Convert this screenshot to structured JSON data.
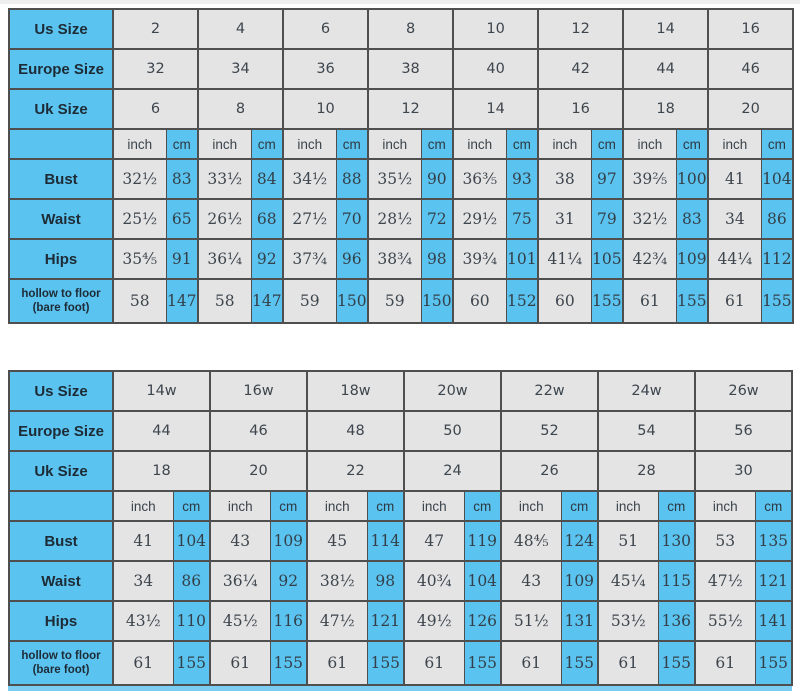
{
  "colors": {
    "cell_blue": "#5bc3ef",
    "cell_grey": "#e4e4e4",
    "border": "#4f4f4f",
    "label_text": "#1d2b36",
    "value_text": "#3d454d"
  },
  "chart_data": [
    {
      "type": "table",
      "columns": 8,
      "units": {
        "inch": "inch",
        "cm": "cm"
      },
      "size_rows": [
        {
          "label": "Us Size",
          "values": [
            "2",
            "4",
            "6",
            "8",
            "10",
            "12",
            "14",
            "16"
          ]
        },
        {
          "label": "Europe Size",
          "values": [
            "32",
            "34",
            "36",
            "38",
            "40",
            "42",
            "44",
            "46"
          ]
        },
        {
          "label": "Uk Size",
          "values": [
            "6",
            "8",
            "10",
            "12",
            "14",
            "16",
            "18",
            "20"
          ]
        }
      ],
      "measure_rows": [
        {
          "label": "Bust",
          "small": false,
          "pairs": [
            [
              "32½",
              "83"
            ],
            [
              "33½",
              "84"
            ],
            [
              "34½",
              "88"
            ],
            [
              "35½",
              "90"
            ],
            [
              "36⅗",
              "93"
            ],
            [
              "38",
              "97"
            ],
            [
              "39⅖",
              "100"
            ],
            [
              "41",
              "104"
            ]
          ]
        },
        {
          "label": "Waist",
          "small": false,
          "pairs": [
            [
              "25½",
              "65"
            ],
            [
              "26½",
              "68"
            ],
            [
              "27½",
              "70"
            ],
            [
              "28½",
              "72"
            ],
            [
              "29½",
              "75"
            ],
            [
              "31",
              "79"
            ],
            [
              "32½",
              "83"
            ],
            [
              "34",
              "86"
            ]
          ]
        },
        {
          "label": "Hips",
          "small": false,
          "pairs": [
            [
              "35⅘",
              "91"
            ],
            [
              "36¼",
              "92"
            ],
            [
              "37¾",
              "96"
            ],
            [
              "38¾",
              "98"
            ],
            [
              "39¾",
              "101"
            ],
            [
              "41¼",
              "105"
            ],
            [
              "42¾",
              "109"
            ],
            [
              "44¼",
              "112"
            ]
          ]
        },
        {
          "label": "hollow to floor\n(bare foot)",
          "small": true,
          "pairs": [
            [
              "58",
              "147"
            ],
            [
              "58",
              "147"
            ],
            [
              "59",
              "150"
            ],
            [
              "59",
              "150"
            ],
            [
              "60",
              "152"
            ],
            [
              "60",
              "155"
            ],
            [
              "61",
              "155"
            ],
            [
              "61",
              "155"
            ]
          ]
        }
      ]
    },
    {
      "type": "table",
      "columns": 7,
      "units": {
        "inch": "inch",
        "cm": "cm"
      },
      "size_rows": [
        {
          "label": "Us Size",
          "values": [
            "14w",
            "16w",
            "18w",
            "20w",
            "22w",
            "24w",
            "26w"
          ]
        },
        {
          "label": "Europe Size",
          "values": [
            "44",
            "46",
            "48",
            "50",
            "52",
            "54",
            "56"
          ]
        },
        {
          "label": "Uk Size",
          "values": [
            "18",
            "20",
            "22",
            "24",
            "26",
            "28",
            "30"
          ]
        }
      ],
      "measure_rows": [
        {
          "label": "Bust",
          "small": false,
          "pairs": [
            [
              "41",
              "104"
            ],
            [
              "43",
              "109"
            ],
            [
              "45",
              "114"
            ],
            [
              "47",
              "119"
            ],
            [
              "48⅘",
              "124"
            ],
            [
              "51",
              "130"
            ],
            [
              "53",
              "135"
            ]
          ]
        },
        {
          "label": "Waist",
          "small": false,
          "pairs": [
            [
              "34",
              "86"
            ],
            [
              "36¼",
              "92"
            ],
            [
              "38½",
              "98"
            ],
            [
              "40¾",
              "104"
            ],
            [
              "43",
              "109"
            ],
            [
              "45¼",
              "115"
            ],
            [
              "47½",
              "121"
            ]
          ]
        },
        {
          "label": "Hips",
          "small": false,
          "pairs": [
            [
              "43½",
              "110"
            ],
            [
              "45½",
              "116"
            ],
            [
              "47½",
              "121"
            ],
            [
              "49½",
              "126"
            ],
            [
              "51½",
              "131"
            ],
            [
              "53½",
              "136"
            ],
            [
              "55½",
              "141"
            ]
          ]
        },
        {
          "label": "hollow to floor\n(bare foot)",
          "small": true,
          "pairs": [
            [
              "61",
              "155"
            ],
            [
              "61",
              "155"
            ],
            [
              "61",
              "155"
            ],
            [
              "61",
              "155"
            ],
            [
              "61",
              "155"
            ],
            [
              "61",
              "155"
            ],
            [
              "61",
              "155"
            ]
          ]
        }
      ]
    }
  ]
}
